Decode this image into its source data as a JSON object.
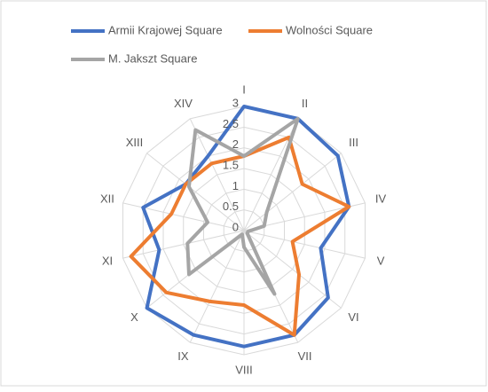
{
  "chart_data": {
    "type": "radar",
    "categories": [
      "I",
      "II",
      "III",
      "IV",
      "V",
      "VI",
      "VII",
      "VIII",
      "IX",
      "X",
      "XI",
      "XII",
      "XIII",
      "XIV"
    ],
    "series": [
      {
        "name": "Armii Krajowej Square",
        "color": "#4472c4",
        "values": [
          3,
          3,
          2.9,
          2.6,
          1.9,
          2.6,
          2.8,
          2.8,
          2.8,
          3,
          2.1,
          2.5,
          1.8,
          2
        ]
      },
      {
        "name": "Wolności Square",
        "color": "#ed7d31",
        "values": [
          1.8,
          2.5,
          1.8,
          2.6,
          1.2,
          1.7,
          2.8,
          1.8,
          1.9,
          2.4,
          2.8,
          1.8,
          1.8,
          1.8
        ]
      },
      {
        "name": "M. Jakszt Square",
        "color": "#a5a5a5",
        "values": [
          1.8,
          3,
          0.7,
          0.5,
          0.1,
          0.1,
          1.7,
          0.4,
          0.1,
          1.7,
          1.4,
          0.9,
          1.7,
          2.7
        ]
      }
    ],
    "ylim": [
      0,
      3
    ],
    "yticks": [
      0,
      0.5,
      1,
      1.5,
      2,
      2.5,
      3
    ],
    "grid": true
  }
}
